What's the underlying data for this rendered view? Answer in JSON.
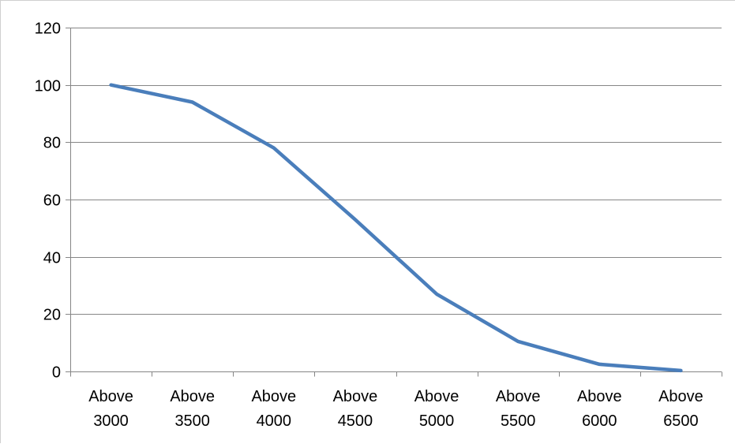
{
  "chart_data": {
    "type": "line",
    "title": "",
    "xlabel": "",
    "ylabel": "",
    "categories": [
      [
        "Above",
        "3000"
      ],
      [
        "Above",
        "3500"
      ],
      [
        "Above",
        "4000"
      ],
      [
        "Above",
        "4500"
      ],
      [
        "Above",
        "5000"
      ],
      [
        "Above",
        "5500"
      ],
      [
        "Above",
        "6000"
      ],
      [
        "Above",
        "6500"
      ]
    ],
    "series": [
      {
        "values": [
          100,
          94,
          78,
          53,
          27,
          10.5,
          2.5,
          0.3
        ],
        "color": "#4a7ebb"
      }
    ],
    "ylim": [
      0,
      120
    ],
    "yticks": [
      0,
      20,
      40,
      60,
      80,
      100,
      120
    ],
    "ytick_labels": [
      "0",
      "20",
      "40",
      "60",
      "80",
      "100",
      "120"
    ],
    "grid": "horizontal",
    "legend": "none"
  }
}
